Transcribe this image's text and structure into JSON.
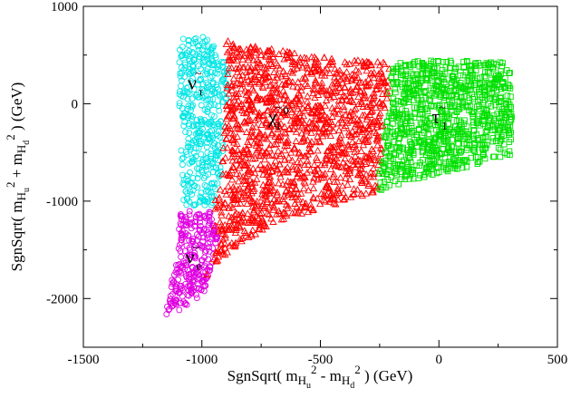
{
  "chart_data": {
    "type": "scatter",
    "title": "",
    "xlabel": {
      "prefix": "SgnSqrt( m",
      "hu": "H",
      "hu_sub": "u",
      "sq1": "2",
      "minus": " - m",
      "hd": "H",
      "hd_sub": "d",
      "sq2": "2",
      "suffix": " ) (GeV)"
    },
    "ylabel": {
      "prefix": "SgnSqrt( m",
      "hu": "H",
      "hu_sub": "u",
      "sq1": "2",
      "plus": " + m",
      "hd": "H",
      "hd_sub": "d",
      "sq2": "2",
      "suffix": " ) (GeV)"
    },
    "xlim": [
      -1500,
      500
    ],
    "ylim": [
      -2500,
      1000
    ],
    "x_ticks": [
      -1500,
      -1000,
      -500,
      0,
      500
    ],
    "x_tick_labels": [
      "-1500",
      "-1000",
      "-500",
      "0",
      "500"
    ],
    "y_ticks": [
      1000,
      0,
      -1000,
      -2000
    ],
    "y_tick_labels": [
      "1000",
      "0",
      "-1000",
      "-2000"
    ],
    "grid": false,
    "legend": "none",
    "series": [
      {
        "name": "sneutrino_tau",
        "label_main": "ν",
        "label_tilde": "~",
        "label_sub": "τ",
        "label_pos": [
          -1060,
          150
        ],
        "marker": "circle",
        "color": "#00e5e5",
        "region": [
          [
            -1090,
            700
          ],
          [
            -980,
            700
          ],
          [
            -900,
            450
          ],
          [
            -890,
            320
          ],
          [
            -920,
            -780
          ],
          [
            -960,
            -1050
          ],
          [
            -1080,
            -1050
          ],
          [
            -1100,
            300
          ]
        ],
        "count": 420
      },
      {
        "name": "sneutrino_e",
        "label_main": "ν",
        "label_tilde": "~",
        "label_sub": "e",
        "label_pos": [
          -1070,
          -1640
        ],
        "marker": "circle",
        "color": "#e000e0",
        "region": [
          [
            -1090,
            -1100
          ],
          [
            -960,
            -1100
          ],
          [
            -930,
            -1420
          ],
          [
            -990,
            -1950
          ],
          [
            -1080,
            -2100
          ],
          [
            -1150,
            -2180
          ],
          [
            -1140,
            -1900
          ],
          [
            -1110,
            -1700
          ]
        ],
        "count": 280
      },
      {
        "name": "neutralino_1",
        "label_main": "χ",
        "label_tilde": "~",
        "label_sub": "1",
        "label_sup": "0",
        "label_pos": [
          -720,
          -200
        ],
        "marker": "triangle",
        "color": "#ff0000",
        "region": [
          [
            -900,
            650
          ],
          [
            -700,
            560
          ],
          [
            -500,
            480
          ],
          [
            -300,
            440
          ],
          [
            -200,
            420
          ],
          [
            -220,
            0
          ],
          [
            -240,
            -500
          ],
          [
            -260,
            -900
          ],
          [
            -300,
            -950
          ],
          [
            -500,
            -1080
          ],
          [
            -700,
            -1220
          ],
          [
            -880,
            -1520
          ],
          [
            -1000,
            -1850
          ],
          [
            -930,
            -1420
          ],
          [
            -960,
            -1100
          ],
          [
            -920,
            -780
          ],
          [
            -890,
            320
          ]
        ],
        "count": 1400
      },
      {
        "name": "stau_1",
        "label_main": "τ",
        "label_tilde": "~",
        "label_sub": "1",
        "label_pos": [
          -30,
          -200
        ],
        "marker": "square",
        "color": "#00e000",
        "region": [
          [
            -200,
            420
          ],
          [
            0,
            460
          ],
          [
            150,
            440
          ],
          [
            300,
            430
          ],
          [
            310,
            -300
          ],
          [
            300,
            -550
          ],
          [
            200,
            -600
          ],
          [
            0,
            -720
          ],
          [
            -150,
            -820
          ],
          [
            -260,
            -900
          ],
          [
            -240,
            -500
          ],
          [
            -220,
            0
          ]
        ],
        "count": 950
      }
    ]
  }
}
